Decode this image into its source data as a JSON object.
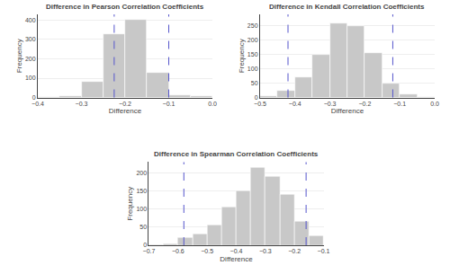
{
  "chart_data": [
    {
      "type": "histogram",
      "title": "Difference in Pearson Correlation Coefficients",
      "xlabel": "Difference",
      "ylabel": "Frequency",
      "xlim": [
        -0.4,
        0.0
      ],
      "ylim": [
        0,
        430
      ],
      "xticks": [
        -0.4,
        -0.3,
        -0.2,
        -0.1,
        0.0
      ],
      "yticks": [
        0,
        100,
        200,
        300,
        400
      ],
      "bins": [
        -0.4,
        -0.35,
        -0.3,
        -0.25,
        -0.2,
        -0.15,
        -0.1,
        -0.05,
        0.0
      ],
      "values": [
        2,
        5,
        80,
        330,
        400,
        130,
        10,
        5
      ],
      "color": "#c8c8c8",
      "vlines": {
        "x": [
          -0.225,
          -0.1
        ],
        "color": "#5555cc",
        "line_style": "dashed"
      }
    },
    {
      "type": "histogram",
      "title": "Difference in Kendall Correlation Coefficients",
      "xlabel": "Difference",
      "ylabel": "Frequency",
      "xlim": [
        -0.5,
        0.0
      ],
      "ylim": [
        0,
        290
      ],
      "xticks": [
        -0.5,
        -0.4,
        -0.3,
        -0.2,
        -0.1,
        0.0
      ],
      "yticks": [
        0,
        50,
        100,
        150,
        200,
        250
      ],
      "bins": [
        -0.5,
        -0.45,
        -0.4,
        -0.35,
        -0.3,
        -0.25,
        -0.2,
        -0.15,
        -0.1,
        -0.05,
        0.0
      ],
      "values": [
        5,
        25,
        70,
        150,
        260,
        250,
        155,
        50,
        10,
        2
      ],
      "color": "#c8c8c8",
      "vlines": {
        "x": [
          -0.42,
          -0.12
        ],
        "color": "#5555cc",
        "line_style": "dashed"
      }
    },
    {
      "type": "histogram",
      "title": "Difference in Spearman Correlation Coefficients",
      "xlabel": "Difference",
      "ylabel": "Frequency",
      "xlim": [
        -0.7,
        -0.1
      ],
      "ylim": [
        0,
        230
      ],
      "xticks": [
        -0.7,
        -0.6,
        -0.5,
        -0.4,
        -0.3,
        -0.2,
        -0.1
      ],
      "yticks": [
        0,
        50,
        100,
        150,
        200
      ],
      "bins": [
        -0.7,
        -0.65,
        -0.6,
        -0.55,
        -0.5,
        -0.45,
        -0.4,
        -0.35,
        -0.3,
        -0.25,
        -0.2,
        -0.15,
        -0.1
      ],
      "values": [
        1,
        5,
        20,
        30,
        55,
        105,
        150,
        215,
        190,
        140,
        65,
        25
      ],
      "color": "#c8c8c8",
      "vlines": {
        "x": [
          -0.58,
          -0.16
        ],
        "color": "#5555cc",
        "line_style": "dashed"
      }
    }
  ]
}
